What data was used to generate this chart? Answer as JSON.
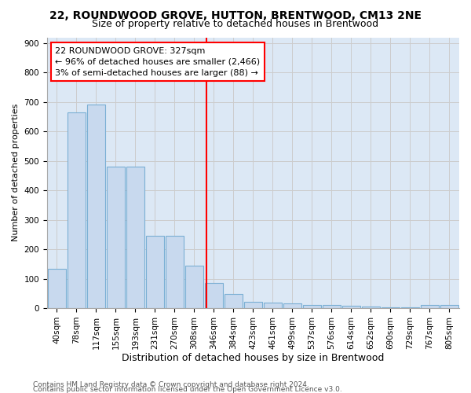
{
  "title": "22, ROUNDWOOD GROVE, HUTTON, BRENTWOOD, CM13 2NE",
  "subtitle": "Size of property relative to detached houses in Brentwood",
  "xlabel": "Distribution of detached houses by size in Brentwood",
  "ylabel": "Number of detached properties",
  "categories": [
    "40sqm",
    "78sqm",
    "117sqm",
    "155sqm",
    "193sqm",
    "231sqm",
    "270sqm",
    "308sqm",
    "346sqm",
    "384sqm",
    "423sqm",
    "461sqm",
    "499sqm",
    "537sqm",
    "576sqm",
    "614sqm",
    "652sqm",
    "690sqm",
    "729sqm",
    "767sqm",
    "805sqm"
  ],
  "values": [
    135,
    665,
    693,
    480,
    480,
    247,
    247,
    145,
    85,
    47,
    22,
    18,
    15,
    10,
    10,
    7,
    5,
    2,
    2,
    10,
    10
  ],
  "bar_color": "#c8d9ee",
  "bar_edge_color": "#7aafd4",
  "vline_x_index": 7.62,
  "vline_color": "red",
  "annotation_text": "22 ROUNDWOOD GROVE: 327sqm\n← 96% of detached houses are smaller (2,466)\n3% of semi-detached houses are larger (88) →",
  "annotation_box_color": "white",
  "annotation_box_edge_color": "red",
  "ylim": [
    0,
    920
  ],
  "yticks": [
    0,
    100,
    200,
    300,
    400,
    500,
    600,
    700,
    800,
    900
  ],
  "grid_color": "#cccccc",
  "bg_color": "#dce8f5",
  "footer_line1": "Contains HM Land Registry data © Crown copyright and database right 2024.",
  "footer_line2": "Contains public sector information licensed under the Open Government Licence v3.0.",
  "title_fontsize": 10,
  "subtitle_fontsize": 9,
  "xlabel_fontsize": 9,
  "ylabel_fontsize": 8,
  "tick_fontsize": 7.5,
  "annotation_fontsize": 8,
  "footer_fontsize": 6.5
}
